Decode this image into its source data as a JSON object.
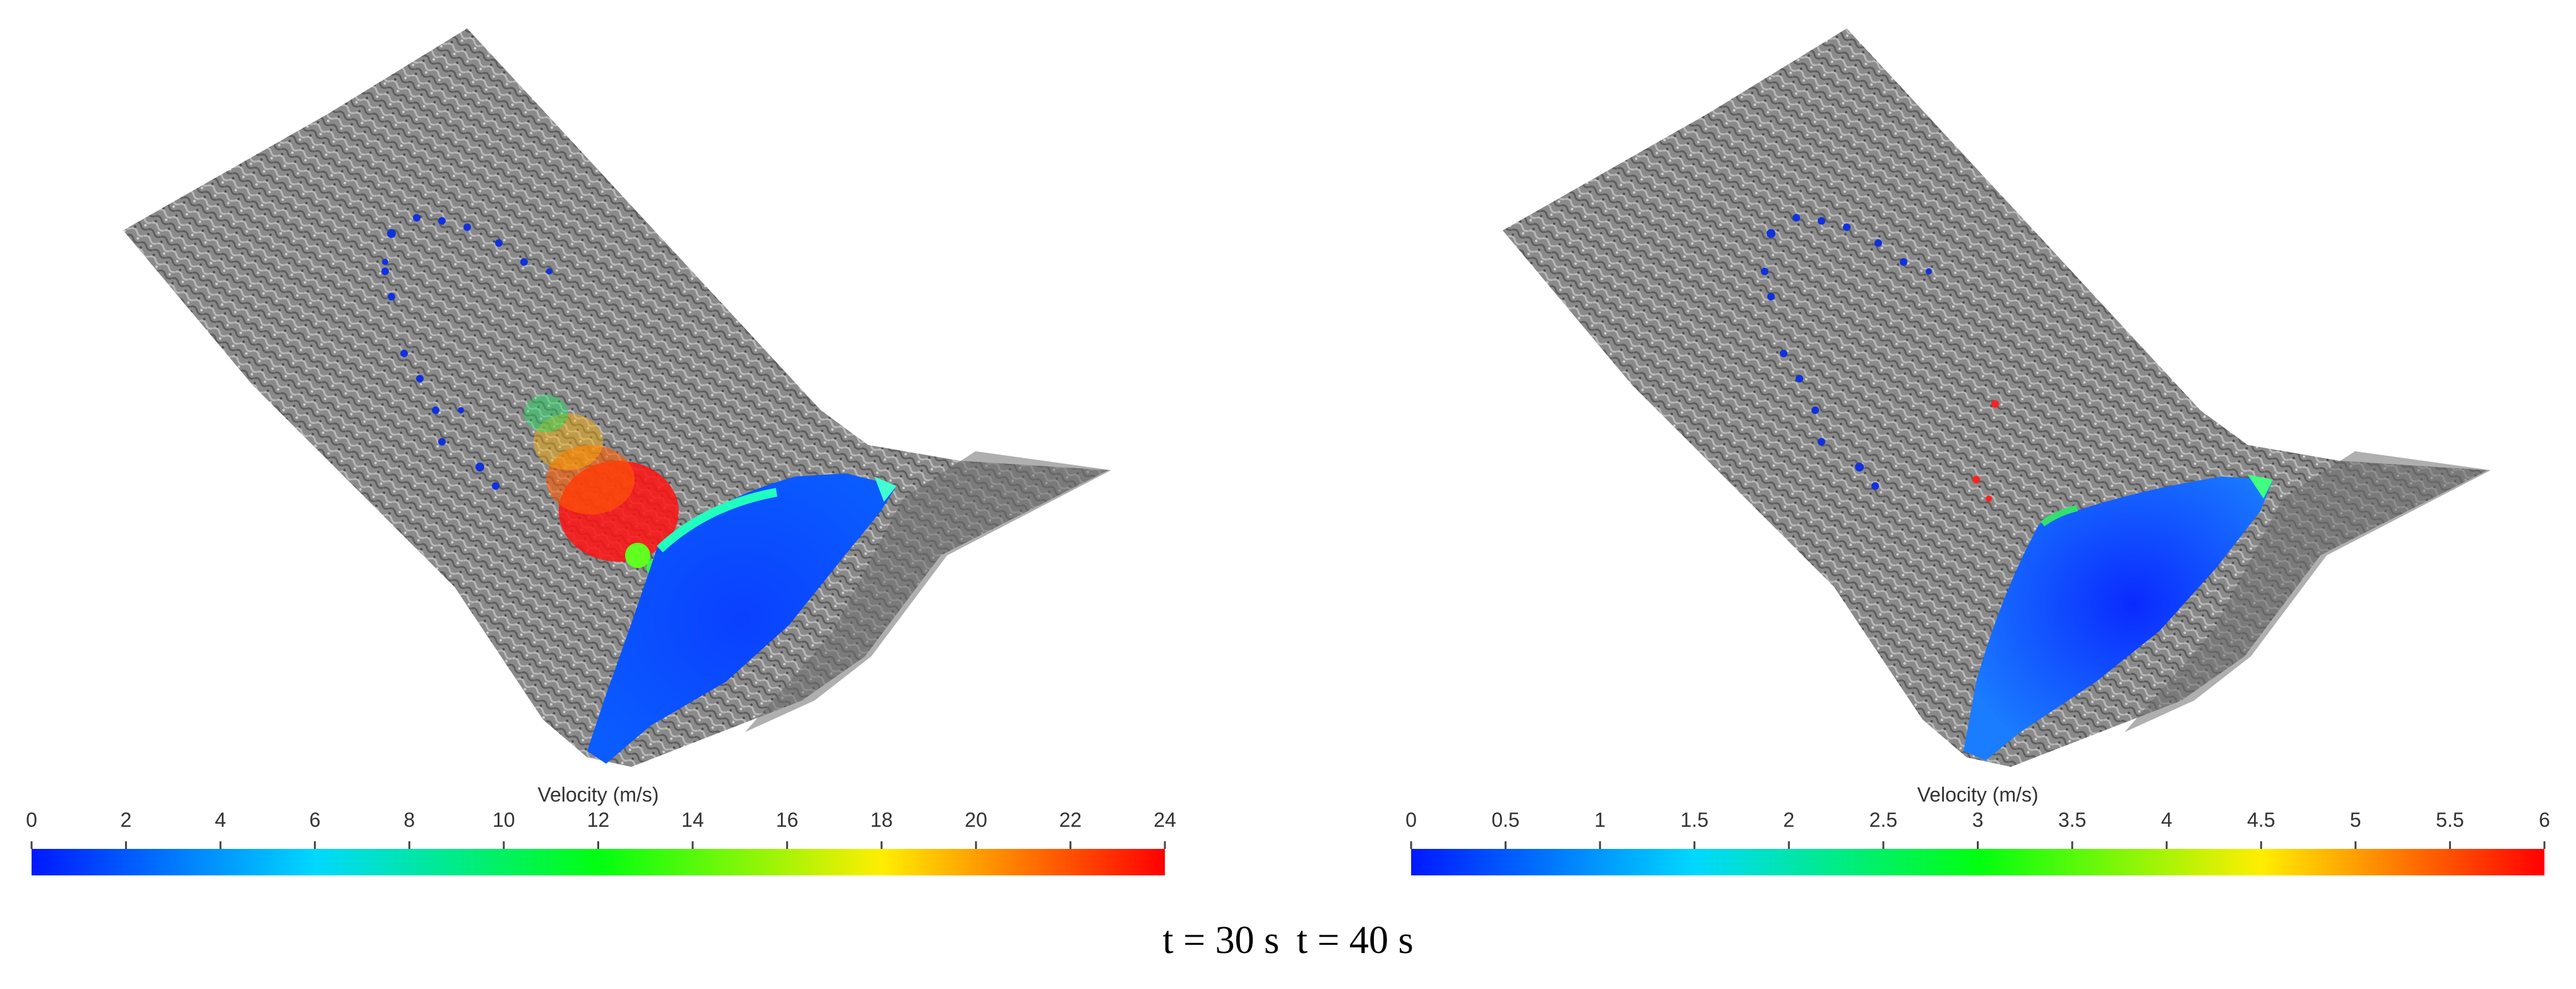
{
  "panels": [
    {
      "colorbar_title": "Velocity (m/s)",
      "ticks": [
        "0",
        "2",
        "4",
        "6",
        "8",
        "10",
        "12",
        "14",
        "16",
        "18",
        "20",
        "22",
        "24"
      ],
      "range": [
        0,
        24
      ]
    },
    {
      "colorbar_title": "Velocity (m/s)",
      "ticks": [
        "0",
        "0.5",
        "1",
        "1.5",
        "2",
        "2.5",
        "3",
        "3.5",
        "4",
        "4.5",
        "5",
        "5.5",
        "6"
      ],
      "range": [
        0,
        6
      ]
    }
  ],
  "captions": [
    "t = 30 s",
    "t = 40 s"
  ],
  "colormap": [
    "#0000ff",
    "#00ffff",
    "#00ff00",
    "#ffff00",
    "#ff0000"
  ],
  "colors": {
    "terrain": "#8c8c8c",
    "flow_blue": "#0a3cff"
  }
}
